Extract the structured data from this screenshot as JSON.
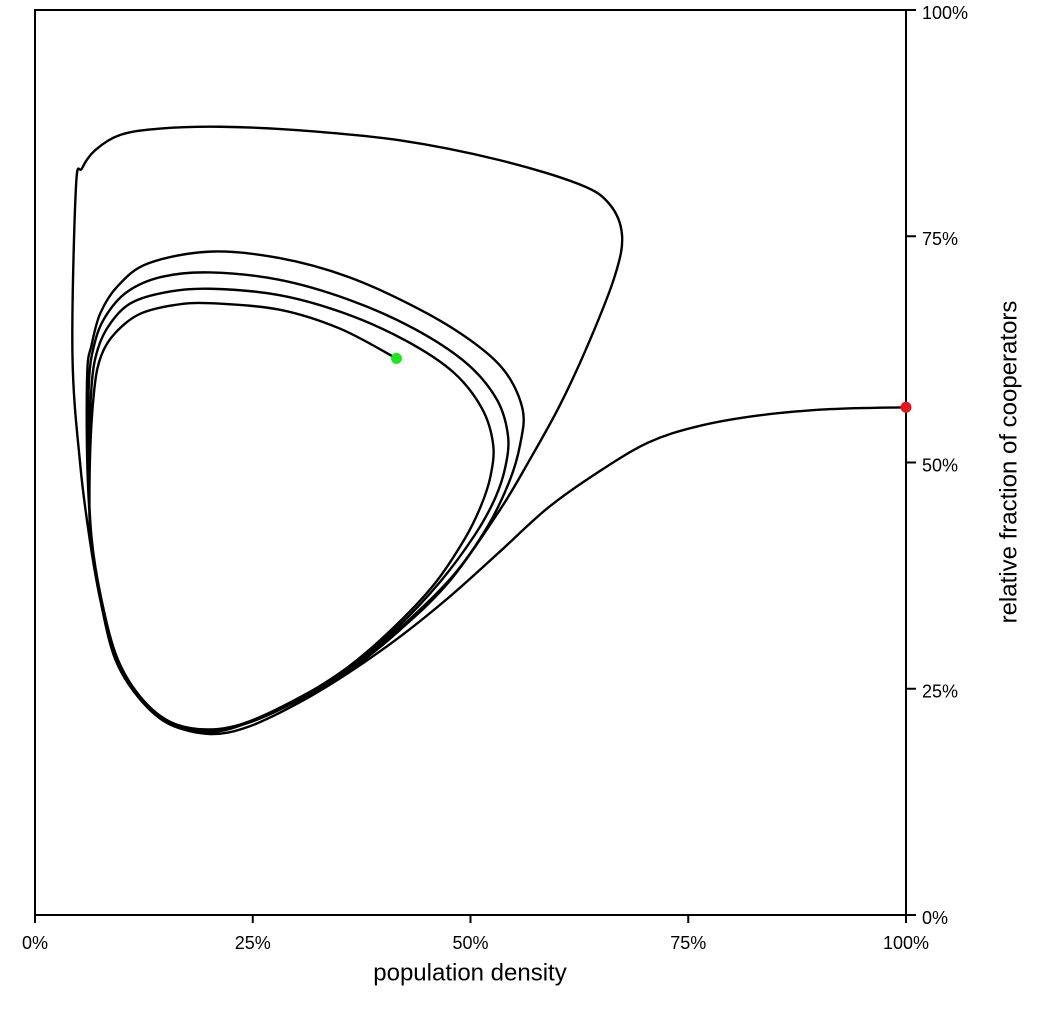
{
  "chart_data": {
    "type": "line",
    "xlabel": "population density",
    "ylabel": "relative fraction of cooperators",
    "xlim": [
      0,
      100
    ],
    "ylim": [
      0,
      100
    ],
    "xticks": [
      {
        "value": 0,
        "label": "0%"
      },
      {
        "value": 25,
        "label": "25%"
      },
      {
        "value": 50,
        "label": "50%"
      },
      {
        "value": 75,
        "label": "75%"
      },
      {
        "value": 100,
        "label": "100%"
      }
    ],
    "yticks": [
      {
        "value": 0,
        "label": "0%"
      },
      {
        "value": 25,
        "label": "25%"
      },
      {
        "value": 50,
        "label": "50%"
      },
      {
        "value": 75,
        "label": "75%"
      },
      {
        "value": 100,
        "label": "100%"
      }
    ],
    "yaxis_side": "right",
    "grid": false,
    "series": [
      {
        "color": "#000000",
        "x": [
          100,
          91.4,
          83.1,
          76.1,
          70.4,
          64.6,
          58.9,
          53.2,
          47.4,
          41.7,
          35.9,
          30.2,
          24.5,
          20.1,
          15.5,
          12.0,
          9.2,
          7.5,
          6.3,
          5.2,
          4.3,
          4.7,
          5.4,
          6.9,
          9.8,
          14.4,
          21.3,
          30.4,
          41.9,
          53.4,
          62.6,
          66.0,
          67.4,
          66.6,
          63.7,
          60.3,
          56.8,
          53.4,
          47.7,
          41.9,
          36.2,
          30.4,
          24.7,
          20.1,
          15.6,
          12.1,
          9.4,
          7.6,
          6.5,
          6.0,
          6.0,
          6.5,
          7.5,
          9.5,
          13.0,
          20.1,
          28.0,
          36.0,
          44.0,
          50.0,
          54.0,
          56.0,
          55.7,
          54.5,
          52.0,
          48.0,
          42.0,
          36.2,
          30.4,
          24.7,
          20.1,
          15.6,
          12.1,
          9.4,
          7.6,
          6.5,
          6.1,
          6.2,
          6.8,
          8.0,
          10.5,
          14.5,
          20.1,
          28.0,
          36.0,
          43.5,
          49.5,
          53.0,
          54.3,
          54.0,
          52.8,
          50.5,
          46.5,
          41.5,
          36.0,
          30.3,
          24.6,
          20.1,
          15.6,
          12.1,
          9.4,
          7.6,
          6.4,
          6.2,
          6.5,
          7.2,
          8.6,
          11.0,
          15.0,
          20.1,
          28.0,
          35.5,
          42.5,
          48.0,
          51.3,
          52.6,
          52.3,
          51.2,
          49.3,
          45.8,
          41.0,
          35.8,
          30.2,
          24.6,
          20.1,
          15.6,
          12.1,
          9.4,
          7.6,
          6.4,
          6.3,
          6.8,
          7.6,
          9.2,
          12.0,
          16.0,
          20.1,
          28.0,
          35.0,
          41.5
        ],
        "y": [
          56.1,
          55.9,
          55.2,
          54.0,
          52.2,
          48.9,
          45.0,
          40.0,
          35.0,
          30.6,
          26.7,
          23.4,
          20.8,
          20.0,
          21.1,
          23.9,
          28.3,
          34.8,
          41.4,
          49.7,
          61.9,
          80.4,
          82.5,
          84.5,
          86.2,
          86.9,
          87.1,
          86.7,
          85.6,
          83.4,
          80.7,
          78.5,
          75.1,
          70.7,
          63.5,
          56.4,
          50.3,
          44.8,
          37.0,
          31.5,
          27.1,
          23.8,
          21.3,
          20.4,
          21.3,
          24.1,
          28.5,
          35.0,
          41.6,
          50.0,
          60.0,
          63.0,
          66.5,
          69.5,
          72.0,
          73.3,
          72.6,
          70.5,
          67.0,
          63.5,
          60.0,
          55.8,
          52.0,
          48.0,
          43.0,
          37.5,
          31.8,
          27.3,
          24.0,
          21.4,
          20.5,
          21.3,
          24.1,
          28.5,
          35.0,
          41.6,
          50.0,
          59.0,
          63.0,
          66.0,
          68.8,
          70.5,
          71.0,
          70.2,
          68.0,
          64.8,
          61.0,
          57.0,
          53.0,
          49.5,
          46.0,
          42.0,
          36.8,
          31.7,
          27.3,
          24.0,
          21.4,
          20.4,
          21.2,
          24.0,
          28.4,
          34.9,
          41.5,
          50.0,
          58.5,
          62.5,
          65.3,
          67.6,
          68.8,
          69.2,
          68.5,
          66.5,
          63.5,
          60.0,
          56.0,
          52.0,
          48.5,
          45.2,
          41.5,
          36.5,
          31.6,
          27.3,
          23.9,
          21.3,
          20.2,
          21.0,
          23.8,
          28.2,
          34.7,
          41.4,
          50.0,
          58.0,
          61.8,
          64.3,
          66.4,
          67.4,
          67.6,
          66.9,
          64.8,
          61.5
        ]
      }
    ],
    "points": [
      {
        "x": 100,
        "y": 56.1,
        "color": "#e8141b"
      },
      {
        "x": 41.5,
        "y": 61.5,
        "color": "#1ee61e"
      }
    ]
  }
}
